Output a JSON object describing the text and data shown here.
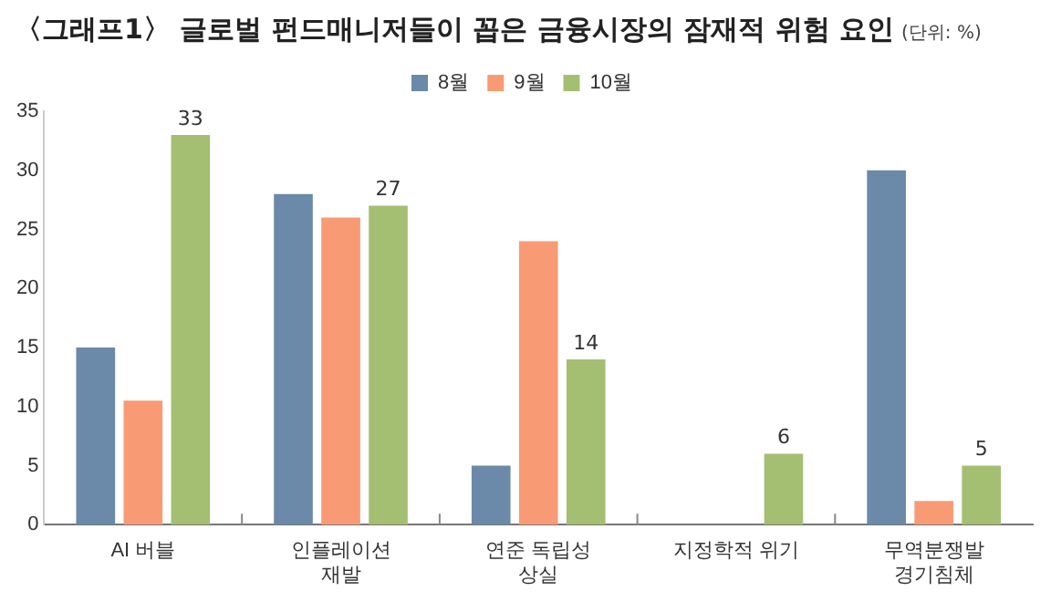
{
  "chart_data": {
    "type": "bar",
    "title": "〈그래프1〉 글로벌 펀드매니저들이 꼽은 금융시장의 잠재적 위험 요인",
    "subtitle": "(단위: %)",
    "categories": [
      "AI 버블",
      "인플레이션\n재발",
      "연준 독립성\n상실",
      "지정학적 위기",
      "무역분쟁발\n경기침체"
    ],
    "series": [
      {
        "name": "8월",
        "color": "#6b89a8",
        "values": [
          15,
          28,
          5,
          null,
          30
        ]
      },
      {
        "name": "9월",
        "color": "#f89b74",
        "values": [
          10.5,
          26,
          24,
          null,
          2
        ]
      },
      {
        "name": "10월",
        "color": "#a4bf72",
        "values": [
          33,
          27,
          14,
          6,
          5
        ],
        "value_labels": [
          "33",
          "27",
          "14",
          "6",
          "5"
        ]
      }
    ],
    "ylim": [
      0,
      35
    ],
    "yticks": [
      0,
      5,
      10,
      15,
      20,
      25,
      30,
      35
    ],
    "grid": false,
    "legend": "top"
  }
}
